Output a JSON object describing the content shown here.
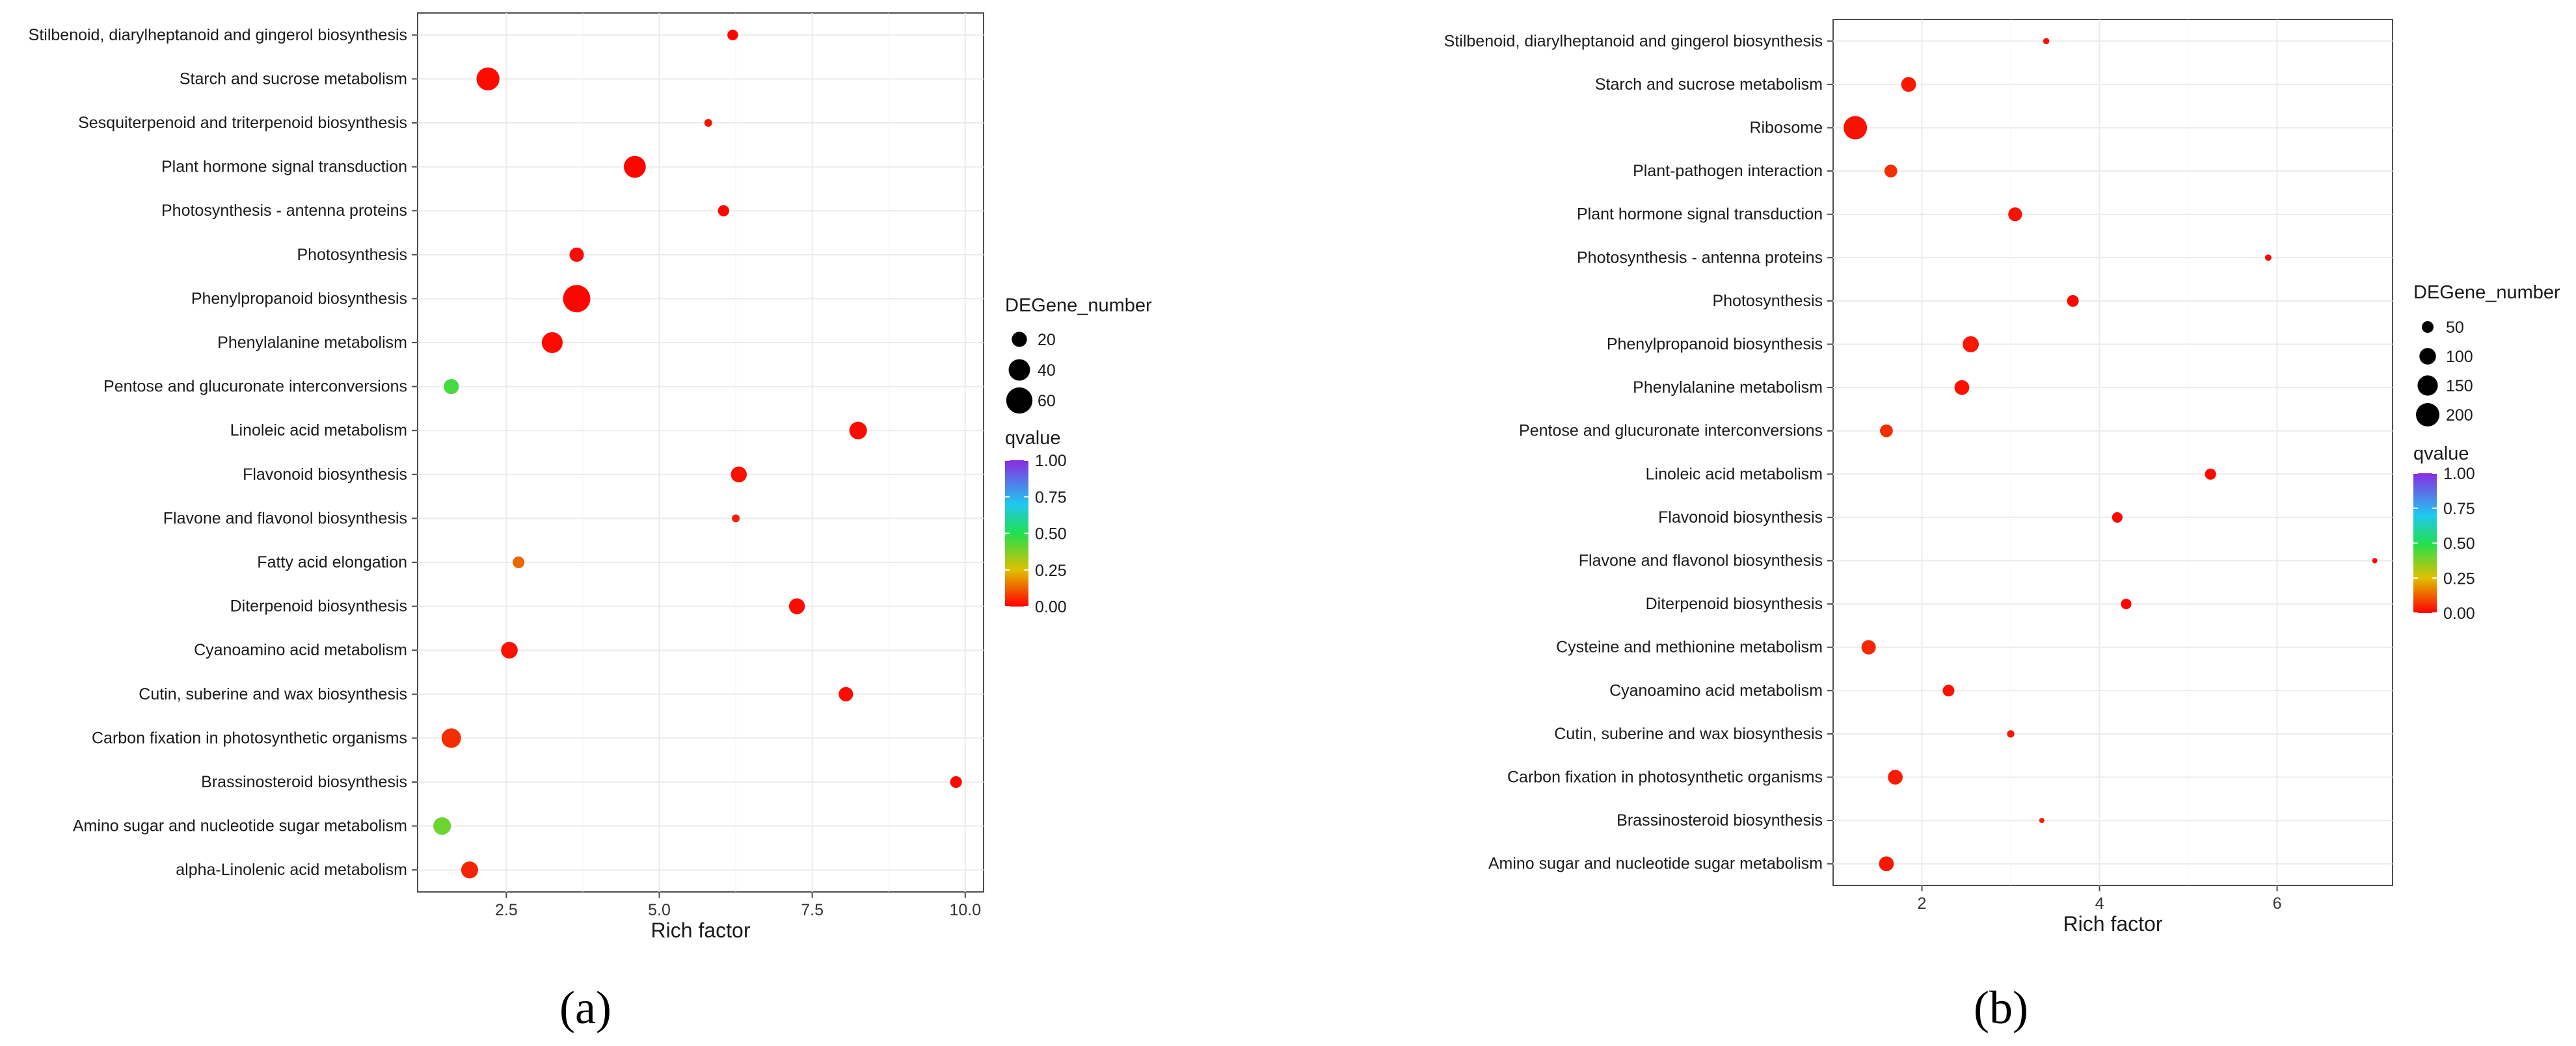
{
  "chart_data": [
    {
      "panel": "a",
      "panel_label": "(a)",
      "type": "scatter",
      "xlabel": "Rich factor",
      "ylabel": "",
      "xlim": [
        1.05,
        10.3
      ],
      "xticks": [
        2.5,
        5.0,
        7.5,
        10.0
      ],
      "xtick_labels": [
        "2.5",
        "5.0",
        "7.5",
        "10.0"
      ],
      "grid": true,
      "categories": [
        "Stilbenoid, diarylheptanoid and gingerol biosynthesis",
        "Starch and sucrose metabolism",
        "Sesquiterpenoid and triterpenoid biosynthesis",
        "Plant hormone signal transduction",
        "Photosynthesis - antenna proteins",
        "Photosynthesis",
        "Phenylpropanoid biosynthesis",
        "Phenylalanine metabolism",
        "Pentose and glucuronate interconversions",
        "Linoleic acid metabolism",
        "Flavonoid biosynthesis",
        "Flavone and flavonol biosynthesis",
        "Fatty acid elongation",
        "Diterpenoid biosynthesis",
        "Cyanoamino acid metabolism",
        "Cutin, suberine and wax biosynthesis",
        "Carbon fixation in photosynthetic organisms",
        "Brassinosteroid biosynthesis",
        "Amino sugar and nucleotide sugar metabolism",
        "alpha-Linolenic acid metabolism"
      ],
      "rich_factor": [
        6.2,
        2.2,
        5.8,
        4.6,
        6.05,
        3.65,
        3.65,
        3.25,
        1.6,
        8.25,
        6.3,
        6.25,
        2.7,
        7.25,
        2.55,
        8.05,
        1.6,
        9.85,
        1.45,
        1.9
      ],
      "degene_number": [
        10,
        46,
        4,
        42,
        11,
        18,
        65,
        38,
        20,
        27,
        22,
        2,
        12,
        22,
        24,
        18,
        33,
        12,
        27,
        25
      ],
      "qvalue": [
        0.01,
        0.02,
        0.04,
        0.01,
        0.01,
        0.02,
        0.01,
        0.02,
        0.45,
        0.02,
        0.03,
        0.05,
        0.15,
        0.02,
        0.03,
        0.02,
        0.08,
        0.01,
        0.4,
        0.06
      ],
      "size_legend": {
        "title": "DEGene_number",
        "values": [
          20,
          40,
          60
        ],
        "labels": [
          "20",
          "40",
          "60"
        ]
      },
      "color_legend": {
        "title": "qvalue",
        "ticks": [
          1.0,
          0.75,
          0.5,
          0.25,
          0.0
        ],
        "labels": [
          "1.00",
          "0.75",
          "0.50",
          "0.25",
          "0.00"
        ]
      },
      "colors": {
        "low": "#ff0000",
        "high": "#8a2be2"
      }
    },
    {
      "panel": "b",
      "panel_label": "(b)",
      "type": "scatter",
      "xlabel": "Rich factor",
      "ylabel": "",
      "xlim": [
        1.0,
        7.3
      ],
      "xticks": [
        2,
        4,
        6
      ],
      "xtick_labels": [
        "2",
        "4",
        "6"
      ],
      "grid": true,
      "categories": [
        "Stilbenoid, diarylheptanoid and gingerol biosynthesis",
        "Starch and sucrose metabolism",
        "Ribosome",
        "Plant-pathogen interaction",
        "Plant hormone signal transduction",
        "Photosynthesis - antenna proteins",
        "Photosynthesis",
        "Phenylpropanoid biosynthesis",
        "Phenylalanine metabolism",
        "Pentose and glucuronate interconversions",
        "Linoleic acid metabolism",
        "Flavonoid biosynthesis",
        "Flavone and flavonol biosynthesis",
        "Diterpenoid biosynthesis",
        "Cysteine and methionine metabolism",
        "Cyanoamino acid metabolism",
        "Cutin, suberine and wax biosynthesis",
        "Carbon fixation in photosynthetic organisms",
        "Brassinosteroid biosynthesis",
        "Amino sugar and nucleotide sugar metabolism"
      ],
      "rich_factor": [
        3.4,
        1.85,
        1.25,
        1.65,
        3.05,
        5.9,
        3.7,
        2.55,
        2.45,
        1.6,
        5.25,
        4.2,
        7.1,
        4.3,
        1.4,
        2.3,
        3.0,
        1.7,
        3.35,
        1.6
      ],
      "degene_number": [
        14,
        80,
        200,
        60,
        70,
        15,
        50,
        95,
        80,
        60,
        45,
        40,
        8,
        40,
        75,
        50,
        20,
        80,
        8,
        80
      ],
      "qvalue": [
        0.02,
        0.04,
        0.03,
        0.08,
        0.03,
        0.01,
        0.01,
        0.04,
        0.03,
        0.08,
        0.02,
        0.01,
        0.01,
        0.01,
        0.07,
        0.03,
        0.04,
        0.05,
        0.05,
        0.04
      ],
      "size_legend": {
        "title": "DEGene_number",
        "values": [
          50,
          100,
          150,
          200
        ],
        "labels": [
          "50",
          "100",
          "150",
          "200"
        ]
      },
      "color_legend": {
        "title": "qvalue",
        "ticks": [
          1.0,
          0.75,
          0.5,
          0.25,
          0.0
        ],
        "labels": [
          "1.00",
          "0.75",
          "0.50",
          "0.25",
          "0.00"
        ]
      },
      "colors": {
        "low": "#ff0000",
        "high": "#8a2be2"
      }
    }
  ]
}
